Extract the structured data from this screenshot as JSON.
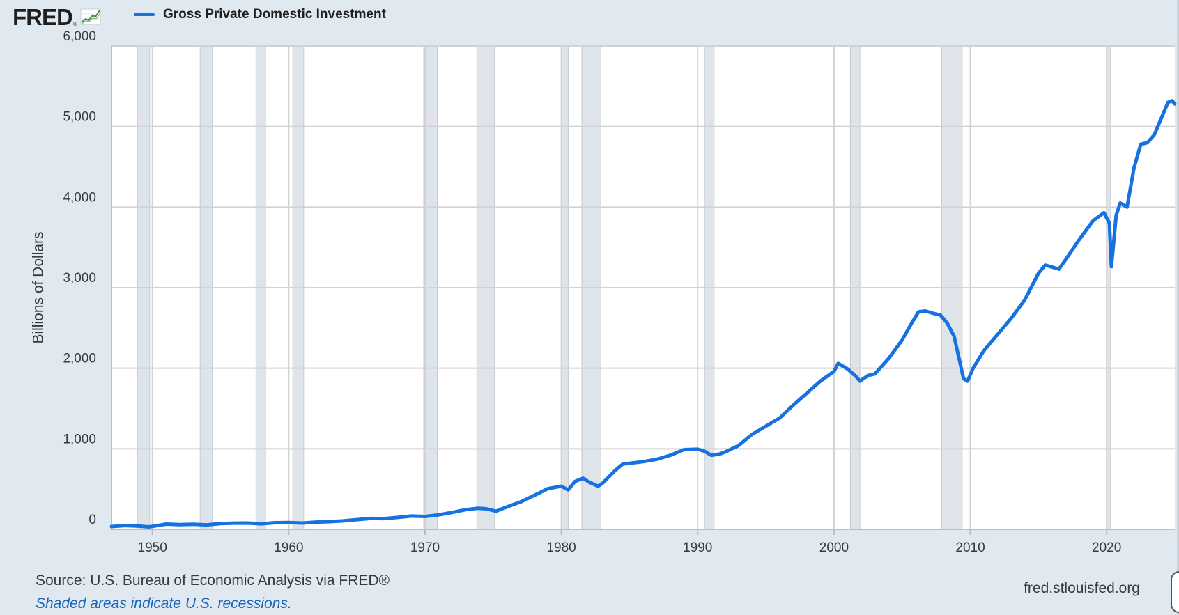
{
  "logo": {
    "text": "FRED",
    "reg": "®"
  },
  "colors": {
    "series": "#1672e0",
    "recession": "#dfe4ea",
    "grid": "#d2d2d2",
    "frame": "#e1e9f0"
  },
  "footer": {
    "source": "Source: U.S. Bureau of Economic Analysis via FRED®",
    "note": "Shaded areas indicate U.S. recessions.",
    "site": "fred.stlouisfed.org"
  },
  "chart_data": {
    "type": "line",
    "title": "",
    "xlabel": "",
    "ylabel": "Billions of Dollars",
    "xlim": [
      1947.0,
      2025.0
    ],
    "ylim": [
      0,
      6000
    ],
    "grid": true,
    "legend_position": "top-left",
    "y_ticks": [
      {
        "value": 0,
        "label": "0"
      },
      {
        "value": 1000,
        "label": "1,000"
      },
      {
        "value": 2000,
        "label": "2,000"
      },
      {
        "value": 3000,
        "label": "3,000"
      },
      {
        "value": 4000,
        "label": "4,000"
      },
      {
        "value": 5000,
        "label": "5,000"
      },
      {
        "value": 6000,
        "label": "6,000"
      }
    ],
    "x_ticks": [
      {
        "value": 1950,
        "label": "1950"
      },
      {
        "value": 1960,
        "label": "1960"
      },
      {
        "value": 1970,
        "label": "1970"
      },
      {
        "value": 1980,
        "label": "1980"
      },
      {
        "value": 1990,
        "label": "1990"
      },
      {
        "value": 2000,
        "label": "2000"
      },
      {
        "value": 2010,
        "label": "2010"
      },
      {
        "value": 2020,
        "label": "2020"
      }
    ],
    "recessions": [
      [
        1948.9,
        1949.8
      ],
      [
        1953.5,
        1954.4
      ],
      [
        1957.6,
        1958.3
      ],
      [
        1960.3,
        1961.1
      ],
      [
        1969.9,
        1970.9
      ],
      [
        1973.8,
        1975.1
      ],
      [
        1980.0,
        1980.5
      ],
      [
        1981.5,
        1982.9
      ],
      [
        1990.5,
        1991.2
      ],
      [
        2001.2,
        2001.9
      ],
      [
        2007.9,
        2009.4
      ],
      [
        2020.0,
        2020.3
      ]
    ],
    "series": [
      {
        "name": "Gross Private Domestic Investment",
        "points": [
          [
            1947.0,
            35
          ],
          [
            1948.0,
            47
          ],
          [
            1949.0,
            40
          ],
          [
            1949.75,
            30
          ],
          [
            1950.5,
            50
          ],
          [
            1951.0,
            65
          ],
          [
            1952.0,
            58
          ],
          [
            1953.0,
            62
          ],
          [
            1954.0,
            55
          ],
          [
            1955.0,
            72
          ],
          [
            1956.0,
            77
          ],
          [
            1957.0,
            78
          ],
          [
            1958.0,
            68
          ],
          [
            1959.0,
            82
          ],
          [
            1960.0,
            85
          ],
          [
            1961.0,
            78
          ],
          [
            1962.0,
            90
          ],
          [
            1963.0,
            95
          ],
          [
            1964.0,
            105
          ],
          [
            1965.0,
            120
          ],
          [
            1966.0,
            135
          ],
          [
            1967.0,
            133
          ],
          [
            1968.0,
            148
          ],
          [
            1969.0,
            165
          ],
          [
            1970.0,
            160
          ],
          [
            1971.0,
            180
          ],
          [
            1972.0,
            210
          ],
          [
            1973.0,
            245
          ],
          [
            1973.9,
            262
          ],
          [
            1974.5,
            255
          ],
          [
            1975.2,
            225
          ],
          [
            1976.0,
            278
          ],
          [
            1977.0,
            340
          ],
          [
            1978.0,
            420
          ],
          [
            1979.0,
            505
          ],
          [
            1980.0,
            535
          ],
          [
            1980.5,
            490
          ],
          [
            1981.0,
            595
          ],
          [
            1981.6,
            635
          ],
          [
            1982.0,
            590
          ],
          [
            1982.7,
            535
          ],
          [
            1983.0,
            570
          ],
          [
            1984.0,
            740
          ],
          [
            1984.5,
            810
          ],
          [
            1985.0,
            820
          ],
          [
            1986.0,
            840
          ],
          [
            1987.0,
            870
          ],
          [
            1988.0,
            920
          ],
          [
            1989.0,
            990
          ],
          [
            1990.0,
            995
          ],
          [
            1990.5,
            970
          ],
          [
            1991.0,
            920
          ],
          [
            1991.6,
            935
          ],
          [
            1992.0,
            960
          ],
          [
            1993.0,
            1040
          ],
          [
            1994.0,
            1180
          ],
          [
            1995.0,
            1280
          ],
          [
            1996.0,
            1380
          ],
          [
            1997.0,
            1540
          ],
          [
            1998.0,
            1690
          ],
          [
            1999.0,
            1840
          ],
          [
            2000.0,
            1960
          ],
          [
            2000.3,
            2060
          ],
          [
            2001.0,
            1990
          ],
          [
            2001.6,
            1900
          ],
          [
            2001.9,
            1840
          ],
          [
            2002.5,
            1910
          ],
          [
            2003.0,
            1930
          ],
          [
            2004.0,
            2120
          ],
          [
            2005.0,
            2350
          ],
          [
            2005.7,
            2560
          ],
          [
            2006.2,
            2700
          ],
          [
            2006.7,
            2710
          ],
          [
            2007.3,
            2680
          ],
          [
            2007.8,
            2660
          ],
          [
            2008.3,
            2560
          ],
          [
            2008.8,
            2400
          ],
          [
            2009.2,
            2100
          ],
          [
            2009.5,
            1870
          ],
          [
            2009.8,
            1840
          ],
          [
            2010.2,
            2000
          ],
          [
            2011.0,
            2220
          ],
          [
            2012.0,
            2420
          ],
          [
            2013.0,
            2620
          ],
          [
            2014.0,
            2850
          ],
          [
            2015.0,
            3180
          ],
          [
            2015.5,
            3280
          ],
          [
            2016.5,
            3230
          ],
          [
            2017.0,
            3350
          ],
          [
            2018.0,
            3600
          ],
          [
            2019.0,
            3830
          ],
          [
            2019.8,
            3930
          ],
          [
            2020.2,
            3800
          ],
          [
            2020.35,
            3260
          ],
          [
            2020.7,
            3900
          ],
          [
            2021.0,
            4050
          ],
          [
            2021.5,
            4000
          ],
          [
            2022.0,
            4480
          ],
          [
            2022.5,
            4780
          ],
          [
            2023.0,
            4800
          ],
          [
            2023.5,
            4900
          ],
          [
            2024.0,
            5100
          ],
          [
            2024.5,
            5300
          ],
          [
            2024.8,
            5320
          ],
          [
            2025.0,
            5280
          ]
        ]
      }
    ]
  }
}
